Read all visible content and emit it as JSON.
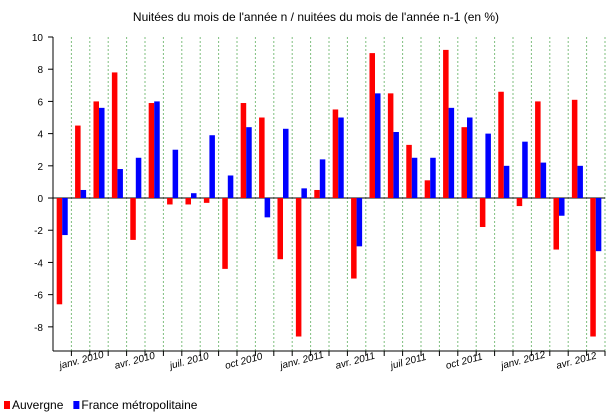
{
  "chart_data": {
    "type": "bar",
    "title": "Nuitées du mois de l'année n / nuitées du mois de l'année n-1 (en %)",
    "categories": [
      "janv. 2010",
      null,
      null,
      "avr. 2010",
      null,
      null,
      "juil. 2010",
      null,
      null,
      "oct 2010",
      null,
      null,
      "janv. 2011",
      null,
      null,
      "avr. 2011",
      null,
      null,
      "juil 2011",
      null,
      null,
      "oct 2011",
      null,
      null,
      "janv. 2012",
      null,
      null,
      "avr. 2012",
      null,
      null
    ],
    "series": [
      {
        "name": "Auvergne",
        "color": "#ff0000",
        "values": [
          -6.6,
          4.5,
          6.0,
          7.8,
          -2.6,
          5.9,
          -0.4,
          -0.4,
          -0.3,
          -4.4,
          5.9,
          5.0,
          -3.8,
          -8.6,
          0.5,
          5.5,
          -5.0,
          9.0,
          6.5,
          3.3,
          1.1,
          9.2,
          4.4,
          -1.8,
          6.6,
          -0.5,
          6.0,
          -3.2,
          6.1,
          -8.6
        ]
      },
      {
        "name": "France métropolitaine",
        "color": "#0000ff",
        "values": [
          -2.3,
          0.5,
          5.6,
          1.8,
          2.5,
          6.0,
          3.0,
          0.3,
          3.9,
          1.4,
          4.4,
          -1.2,
          4.3,
          0.6,
          2.4,
          5.0,
          -3.0,
          6.5,
          4.1,
          2.5,
          2.5,
          5.6,
          5.0,
          4.0,
          2.0,
          3.5,
          2.2,
          -1.1,
          2.0,
          -3.3
        ]
      }
    ],
    "ylim": [
      -9.5,
      10
    ],
    "yticks": [
      -8,
      -6,
      -4,
      -2,
      0,
      2,
      4,
      6,
      8,
      10
    ],
    "grid": true
  }
}
